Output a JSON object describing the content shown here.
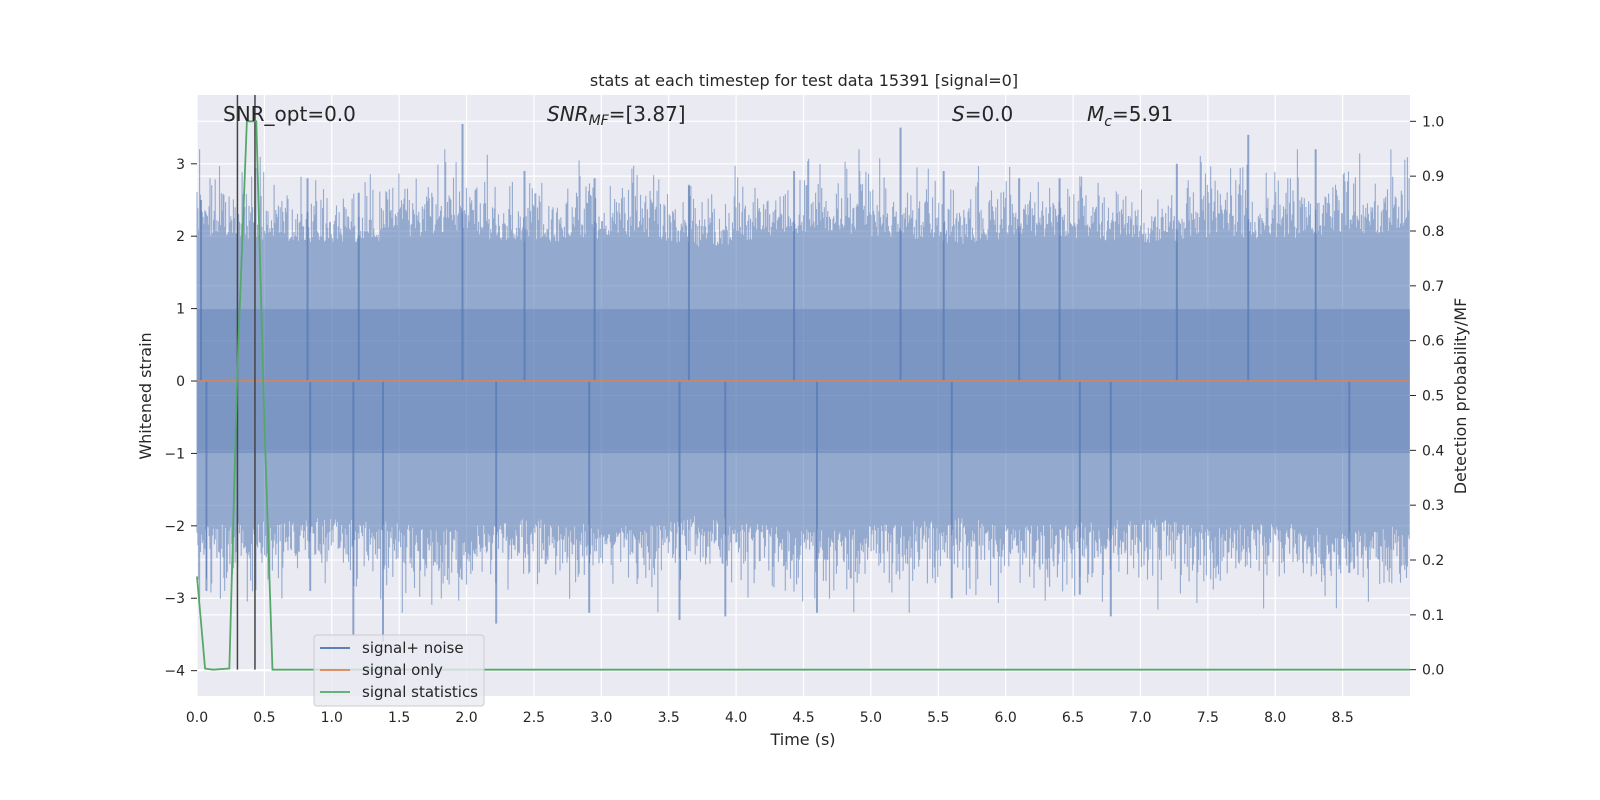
{
  "chart_data": {
    "type": "line",
    "title": "stats at each timestep for test data 15391 [signal=0]",
    "xlabel": "Time (s)",
    "ylabel": "Whitened strain",
    "y2label": "Detection probability/MF",
    "xlim": [
      0,
      9.0
    ],
    "ylim": [
      -4.35,
      3.95
    ],
    "y2lim": [
      -0.048,
      1.048
    ],
    "x_ticks": [
      0.0,
      0.5,
      1.0,
      1.5,
      2.0,
      2.5,
      3.0,
      3.5,
      4.0,
      4.5,
      5.0,
      5.5,
      6.0,
      6.5,
      7.0,
      7.5,
      8.0,
      8.5
    ],
    "x_tick_labels": [
      "0.0",
      "0.5",
      "1.0",
      "1.5",
      "2.0",
      "2.5",
      "3.0",
      "3.5",
      "4.0",
      "4.5",
      "5.0",
      "5.5",
      "6.0",
      "6.5",
      "7.0",
      "7.5",
      "8.0",
      "8.5"
    ],
    "y_ticks": [
      -4,
      -3,
      -2,
      -1,
      0,
      1,
      2,
      3
    ],
    "y_tick_labels": [
      "−4",
      "−3",
      "−2",
      "−1",
      "0",
      "1",
      "2",
      "3"
    ],
    "y2_ticks": [
      0.0,
      0.1,
      0.2,
      0.3,
      0.4,
      0.5,
      0.6,
      0.7,
      0.8,
      0.9,
      1.0
    ],
    "y2_tick_labels": [
      "0.0",
      "0.1",
      "0.2",
      "0.3",
      "0.4",
      "0.5",
      "0.6",
      "0.7",
      "0.8",
      "0.9",
      "1.0"
    ],
    "grid": true,
    "legend_position": "lower-left",
    "annotations": {
      "snr_opt": "SNR_opt=0.0",
      "snr_mf_sym": "SNR",
      "snr_mf_sub": "MF",
      "snr_mf_val": "=[3.87]",
      "s_sym": "S",
      "s_val": "=0.0",
      "mc_sym": "M",
      "mc_sub": "c",
      "mc_val": "=5.91"
    },
    "vertical_markers": [
      0.3,
      0.43
    ],
    "series": [
      {
        "name": "signal+ noise",
        "color": "#4c72b0",
        "style": "dense noise band, roughly ±2 with spikes to about ±3.5",
        "envelope_upper": [
          2.5,
          2.4,
          2.3,
          2.4,
          2.6,
          2.3,
          2.4,
          2.5,
          2.2,
          2.5,
          2.6,
          2.4,
          2.3,
          2.5,
          2.4,
          2.3,
          2.5,
          2.4,
          2.6,
          2.5
        ],
        "peaks": [
          [
            0.03,
            2.5
          ],
          [
            0.82,
            2.8
          ],
          [
            1.2,
            2.6
          ],
          [
            1.97,
            3.55
          ],
          [
            2.43,
            2.9
          ],
          [
            2.95,
            2.8
          ],
          [
            3.65,
            2.7
          ],
          [
            4.43,
            2.9
          ],
          [
            5.22,
            3.5
          ],
          [
            5.54,
            2.9
          ],
          [
            6.1,
            2.8
          ],
          [
            6.4,
            2.8
          ],
          [
            7.27,
            3.0
          ],
          [
            7.8,
            3.4
          ],
          [
            8.3,
            3.2
          ]
        ],
        "troughs": [
          [
            0.07,
            -2.9
          ],
          [
            0.84,
            -2.9
          ],
          [
            1.16,
            -3.5
          ],
          [
            1.38,
            -3.6
          ],
          [
            2.22,
            -3.35
          ],
          [
            2.91,
            -3.2
          ],
          [
            3.58,
            -3.3
          ],
          [
            3.92,
            -3.25
          ],
          [
            4.6,
            -3.2
          ],
          [
            5.6,
            -3.0
          ],
          [
            6.55,
            -2.95
          ],
          [
            6.78,
            -3.25
          ],
          [
            8.55,
            -2.65
          ]
        ]
      },
      {
        "name": "signal only",
        "color": "#dd8452",
        "x": [
          0,
          9.0
        ],
        "y": [
          0,
          0
        ]
      },
      {
        "name": "signal statistics",
        "color": "#55a868",
        "axis": "right",
        "x": [
          0.0,
          0.06,
          0.12,
          0.24,
          0.3,
          0.37,
          0.44,
          0.5,
          0.56,
          9.0
        ],
        "y": [
          0.17,
          0.002,
          0.0,
          0.002,
          0.55,
          1.0,
          1.0,
          0.45,
          0.0,
          0.0
        ]
      }
    ]
  }
}
